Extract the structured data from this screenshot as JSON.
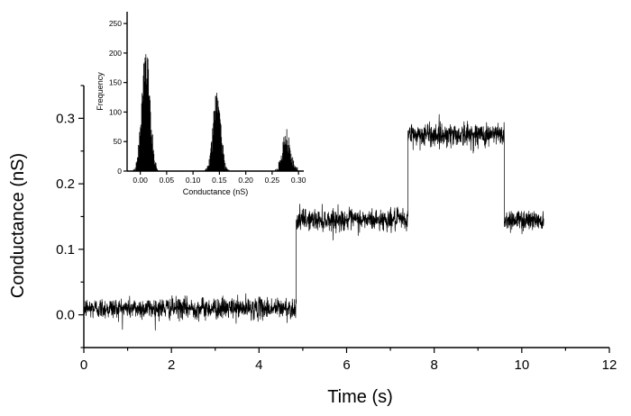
{
  "chart_data": [
    {
      "type": "line",
      "role": "main",
      "xlabel": "Time (s)",
      "ylabel": "Conductance (nS)",
      "xlim": [
        0,
        12
      ],
      "ylim": [
        -0.05,
        0.35
      ],
      "x_ticks": [
        0,
        2,
        4,
        6,
        8,
        10,
        12
      ],
      "x_tick_labels": [
        "0",
        "2",
        "4",
        "6",
        "8",
        "10",
        "12"
      ],
      "y_ticks": [
        0.0,
        0.1,
        0.2,
        0.3
      ],
      "y_tick_labels": [
        "0.0",
        "0.1",
        "0.2",
        "0.3"
      ],
      "series_color": "#000000",
      "series": [
        {
          "segments": [
            {
              "x_start": 0.0,
              "x_end": 4.85,
              "level": 0.01,
              "noise": 0.008
            },
            {
              "x_start": 4.85,
              "x_end": 7.4,
              "level": 0.145,
              "noise": 0.008
            },
            {
              "x_start": 7.4,
              "x_end": 9.6,
              "level": 0.275,
              "noise": 0.009
            },
            {
              "x_start": 9.6,
              "x_end": 10.5,
              "level": 0.145,
              "noise": 0.008
            }
          ]
        }
      ],
      "grid": false
    },
    {
      "type": "bar",
      "role": "inset-histogram",
      "xlabel": "Conductance (nS)",
      "ylabel": "Frequency",
      "xlim": [
        -0.025,
        0.31
      ],
      "ylim": [
        0,
        270
      ],
      "x_ticks": [
        0.0,
        0.05,
        0.1,
        0.15,
        0.2,
        0.25,
        0.3
      ],
      "x_tick_labels": [
        "0.00",
        "0.05",
        "0.10",
        "0.15",
        "0.20",
        "0.25",
        "0.30"
      ],
      "y_ticks": [
        0,
        50,
        100,
        150,
        200,
        250
      ],
      "y_tick_labels": [
        "0",
        "50",
        "100",
        "150",
        "200",
        "250"
      ],
      "bar_color": "#000000",
      "peaks": [
        {
          "center": 0.01,
          "height": 195,
          "width": 0.0075
        },
        {
          "center": 0.145,
          "height": 125,
          "width": 0.0072
        },
        {
          "center": 0.277,
          "height": 55,
          "width": 0.0075
        }
      ],
      "grid": false
    }
  ]
}
